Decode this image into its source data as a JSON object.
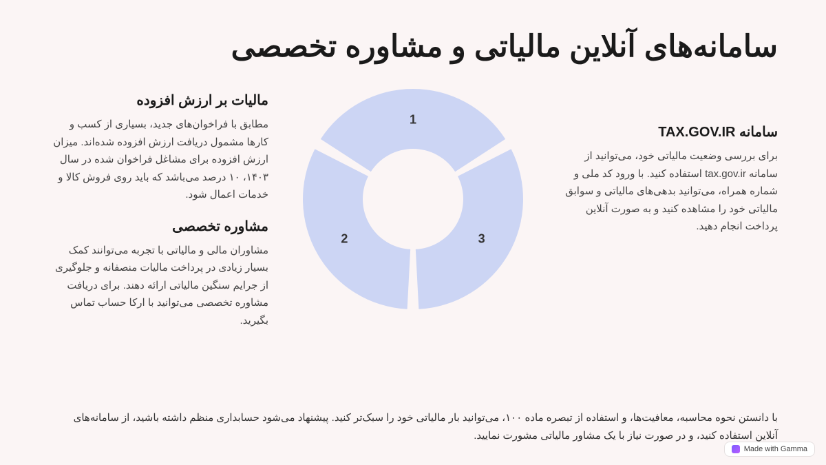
{
  "background_color": "#fbf5f5",
  "title": "سامانه‌های آنلاین مالیاتی و مشاوره تخصصی",
  "title_fontsize": 44,
  "right_block": {
    "title": "سامانه TAX.GOV.IR",
    "body": "برای بررسی وضعیت مالیاتی خود، می‌توانید از سامانه tax.gov.ir استفاده کنید. با ورود کد ملی و شماره همراه، می‌توانید بدهی‌های مالیاتی و سوابق مالیاتی خود را مشاهده کنید و به صورت آنلاین پرداخت انجام دهید."
  },
  "left_blocks": [
    {
      "title": "مالیات بر ارزش افزوده",
      "body": "مطابق با فراخوان‌های جدید، بسیاری از کسب و کارها مشمول دریافت ارزش افزوده شده‌اند. میزان ارزش افزوده برای مشاغل فراخوان شده در سال ۱۴۰۳، ۱۰ درصد می‌باشد که باید روی فروش کالا و خدمات اعمال شود."
    },
    {
      "title": "مشاوره تخصصی",
      "body": "مشاوران مالی و مالیاتی با تجربه می‌توانند کمک بسیار زیادی در پرداخت مالیات منصفانه و جلوگیری از جرایم سنگین مالیاتی ارائه دهند. برای دریافت مشاوره تخصصی می‌توانید با ارکا حساب تماس بگیرید."
    }
  ],
  "footer": "با دانستن نحوه محاسبه، معافیت‌ها، و استفاده از تبصره ماده ۱۰۰، می‌توانید بار مالیاتی خود را سبک‌تر کنید. پیشنهاد می‌شود حسابداری منظم داشته باشید، از سامانه‌های آنلاین استفاده کنید، و در صورت نیاز با یک مشاور مالیاتی مشورت نمایید.",
  "donut": {
    "type": "donut-segments",
    "outer_radius": 160,
    "inner_radius": 73,
    "gap_deg": 6,
    "segment_color": "#ccd5f4",
    "label_color": "#333333",
    "label_fontsize": 18,
    "label_radius": 115,
    "segments": [
      {
        "label": "1",
        "start_deg": -60,
        "end_deg": 60
      },
      {
        "label": "2",
        "start_deg": 180,
        "end_deg": 300
      },
      {
        "label": "3",
        "start_deg": 60,
        "end_deg": 180
      }
    ]
  },
  "badge": {
    "text": "Made with Gamma"
  }
}
